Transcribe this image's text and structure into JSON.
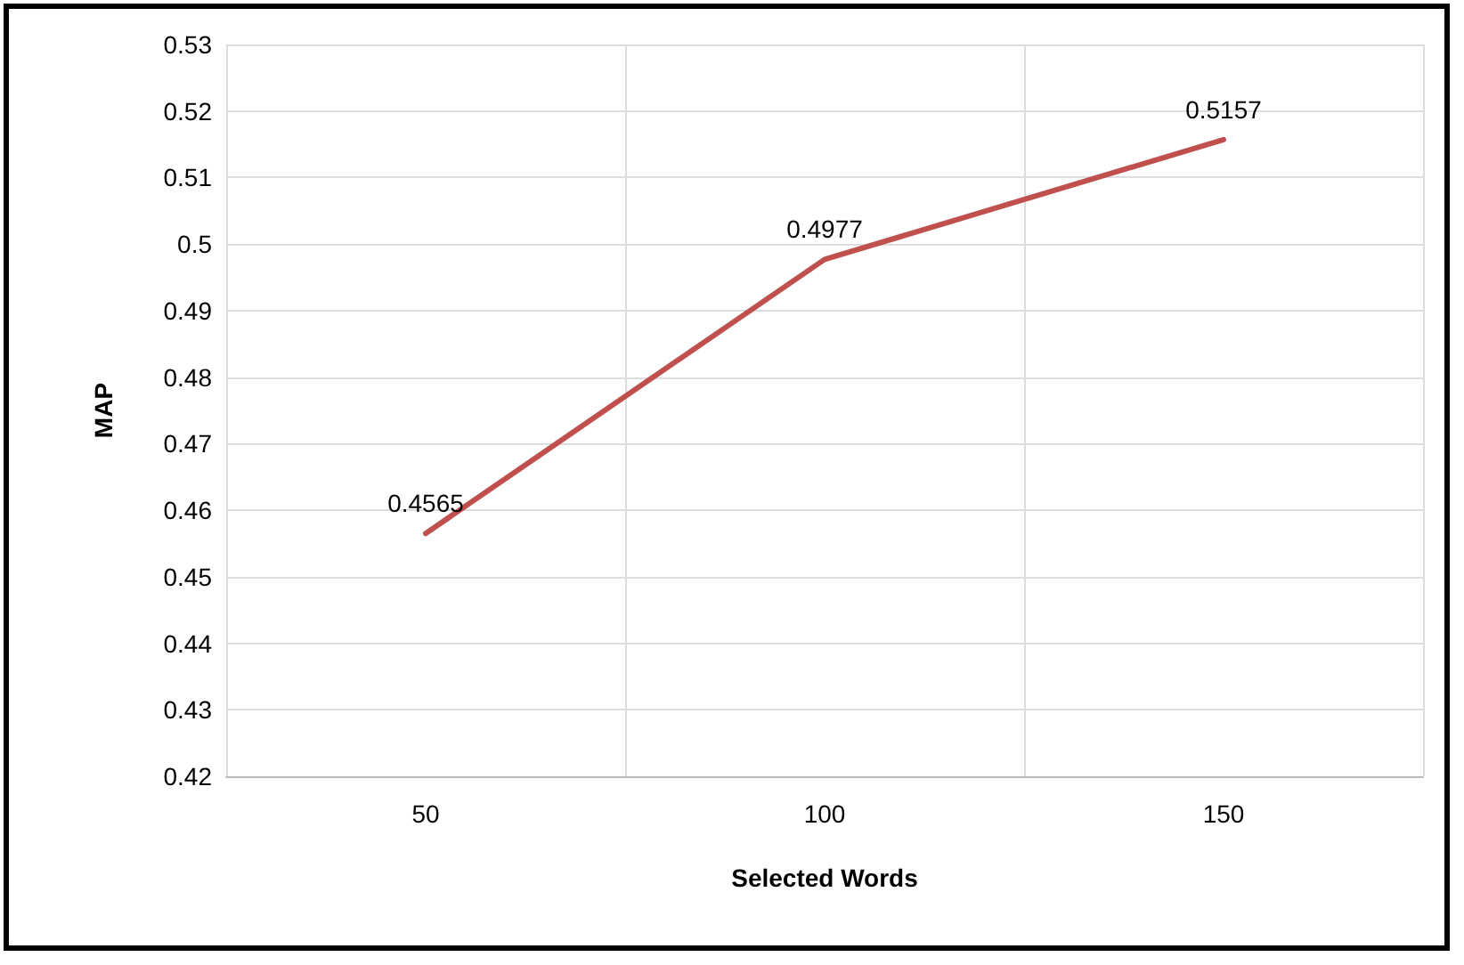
{
  "chart_data": {
    "type": "line",
    "xlabel": "Selected Words",
    "ylabel": "MAP",
    "categories": [
      "50",
      "100",
      "150"
    ],
    "series": [
      {
        "color": "#c0504d",
        "values": [
          0.4565,
          0.4977,
          0.5157
        ]
      }
    ],
    "ylim": [
      0.42,
      0.53
    ],
    "yticks": [
      0.42,
      0.43,
      0.44,
      0.45,
      0.46,
      0.47,
      0.48,
      0.49,
      0.5,
      0.51,
      0.52,
      0.53
    ],
    "grid": true,
    "data_labels": true,
    "marker": "none",
    "line_style": "solid"
  }
}
